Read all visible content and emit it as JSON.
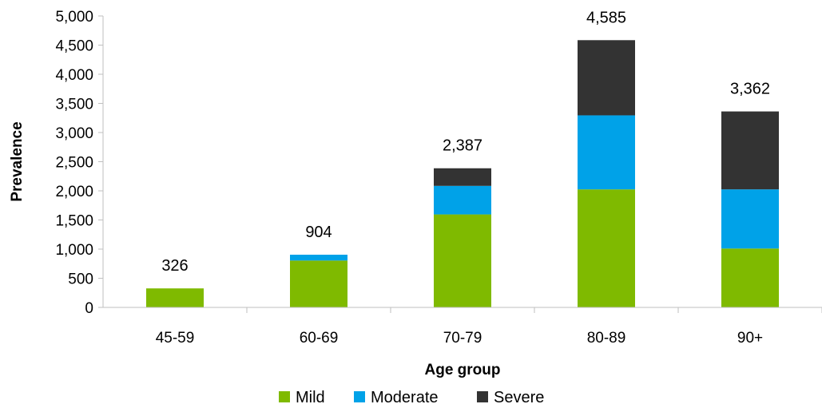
{
  "chart_data": {
    "type": "bar",
    "stacked": true,
    "categories": [
      "45-59",
      "60-69",
      "70-79",
      "80-89",
      "90+"
    ],
    "series": [
      {
        "name": "Mild",
        "color": "#7FBA00",
        "values": [
          326,
          804,
          1595,
          2025,
          1010
        ]
      },
      {
        "name": "Moderate",
        "color": "#00A2E8",
        "values": [
          0,
          100,
          490,
          1270,
          1015
        ]
      },
      {
        "name": "Severe",
        "color": "#333333",
        "values": [
          0,
          0,
          302,
          1290,
          1337
        ]
      }
    ],
    "totals": [
      326,
      904,
      2387,
      4585,
      3362
    ],
    "total_labels": [
      "326",
      "904",
      "2,387",
      "4,585",
      "3,362"
    ],
    "y_ticks": [
      0,
      500,
      1000,
      1500,
      2000,
      2500,
      3000,
      3500,
      4000,
      4500,
      5000
    ],
    "y_tick_labels": [
      "0",
      "500",
      "1,000",
      "1,500",
      "2,000",
      "2,500",
      "3,000",
      "3,500",
      "4,000",
      "4,500",
      "5,000"
    ],
    "ylim": [
      0,
      5000
    ],
    "xlabel": "Age group",
    "ylabel": "Prevalence",
    "legend_position": "bottom",
    "grid": false
  }
}
